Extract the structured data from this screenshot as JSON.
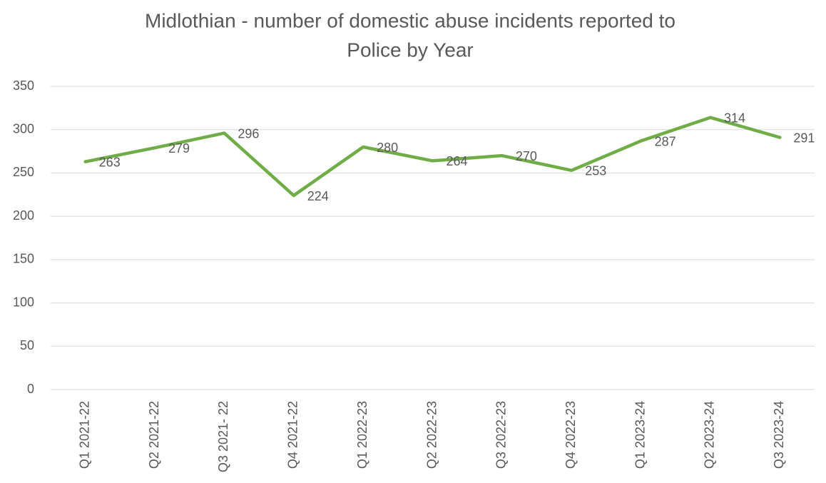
{
  "chart_data": {
    "type": "line",
    "title": [
      "Midlothian - number of domestic abuse incidents reported to",
      "Police by Year"
    ],
    "categories": [
      "Q1 2021-22",
      "Q2 2021-22",
      "Q3 2021- 22",
      "Q4 2021-22",
      "Q1 2022-23",
      "Q2 2022-23",
      "Q3 2022-23",
      "Q4 2022-23",
      "Q1 2023-24",
      "Q2 2023-24",
      "Q3 2023-24"
    ],
    "values": [
      263,
      279,
      296,
      224,
      280,
      264,
      270,
      253,
      287,
      314,
      291
    ],
    "color": "#70ad47",
    "ylim": [
      0,
      350
    ],
    "yticks": [
      0,
      50,
      100,
      150,
      200,
      250,
      300,
      350
    ],
    "grid": true
  }
}
